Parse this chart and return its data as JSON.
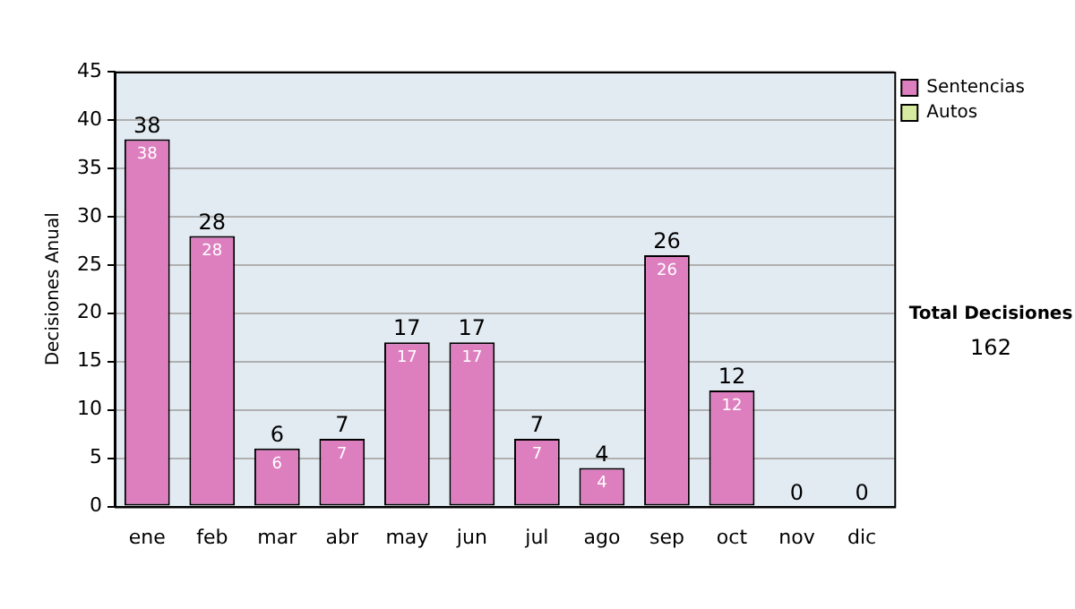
{
  "chart_data": {
    "type": "bar",
    "stacked": true,
    "ylabel": "Decisiones Anual",
    "categories": [
      "ene",
      "feb",
      "mar",
      "abr",
      "may",
      "jun",
      "jul",
      "ago",
      "sep",
      "oct",
      "nov",
      "dic"
    ],
    "series": [
      {
        "name": "Sentencias",
        "color": "#dd7fbf",
        "values": [
          38,
          28,
          6,
          7,
          17,
          17,
          7,
          4,
          26,
          12,
          0,
          0
        ],
        "value_labels": [
          "38",
          "28",
          "6",
          "7",
          "17",
          "17",
          "7",
          "4",
          "26",
          "12",
          null,
          null
        ]
      },
      {
        "name": "Autos",
        "color": "#d7eba0",
        "values": [
          0,
          0,
          0,
          0,
          0,
          0,
          0,
          0,
          0,
          0,
          0,
          0
        ]
      }
    ],
    "totals": [
      "38",
      "28",
      "6",
      "7",
      "17",
      "17",
      "7",
      "4",
      "26",
      "12",
      "0",
      "0"
    ],
    "ylim": [
      0,
      45
    ],
    "yticks": [
      0,
      5,
      10,
      15,
      20,
      25,
      30,
      35,
      40,
      45
    ],
    "grid": "y",
    "legend": "right",
    "annotations": [
      "Total Decisiones",
      "162"
    ]
  }
}
